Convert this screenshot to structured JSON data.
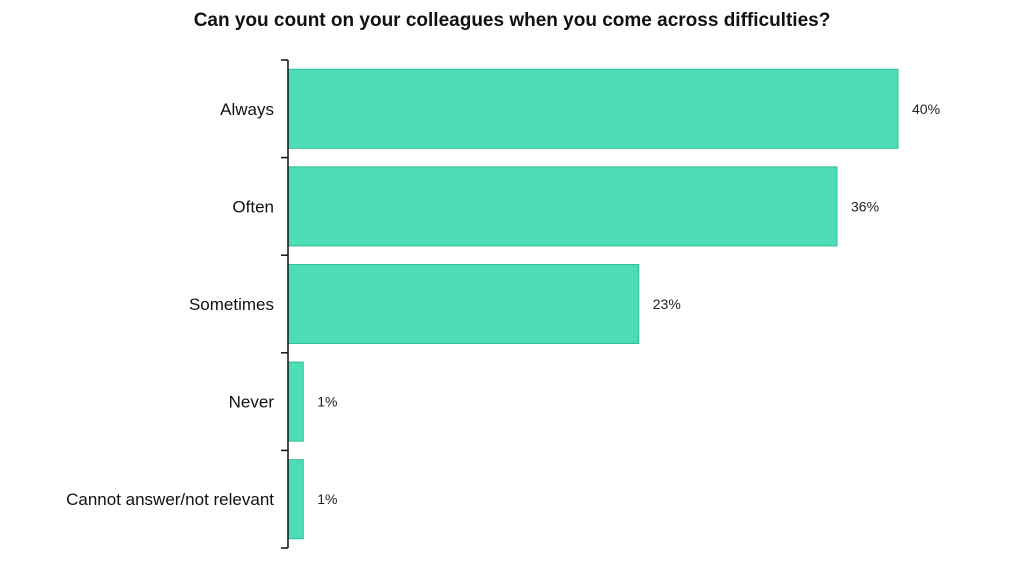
{
  "chart_data": {
    "type": "bar",
    "orientation": "horizontal",
    "title": "Can you count on your colleagues when you come across difficulties?",
    "categories": [
      "Always",
      "Often",
      "Sometimes",
      "Never",
      "Cannot answer/not relevant"
    ],
    "values": [
      40,
      36,
      23,
      1,
      1
    ],
    "value_labels": [
      "40%",
      "36%",
      "23%",
      "1%",
      "1%"
    ],
    "unit": "%",
    "xlim": [
      0,
      40
    ],
    "xlabel": "",
    "ylabel": "",
    "grid": false,
    "legend": "none",
    "bar_color": "#4cddb7",
    "bar_edge_color": "#2fbf98"
  }
}
